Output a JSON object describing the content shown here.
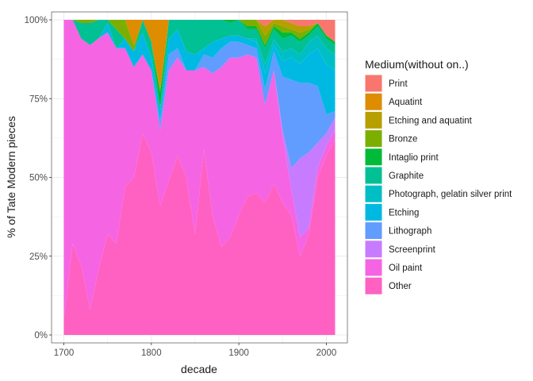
{
  "chart_data": {
    "type": "area",
    "stacked": "fill",
    "title": "",
    "xlabel": "decade",
    "ylabel": "% of Tate Modern pieces",
    "xlim": [
      1700,
      2010
    ],
    "ylim": [
      0,
      1
    ],
    "x_ticks": [
      {
        "value": 1700,
        "label": "1700"
      },
      {
        "value": 1800,
        "label": "1800"
      },
      {
        "value": 1900,
        "label": "1900"
      },
      {
        "value": 2000,
        "label": "2000"
      }
    ],
    "y_ticks": [
      {
        "value": 0,
        "label": "0%"
      },
      {
        "value": 0.25,
        "label": "25%"
      },
      {
        "value": 0.5,
        "label": "50%"
      },
      {
        "value": 0.75,
        "label": "75%"
      },
      {
        "value": 1.0,
        "label": "100%"
      }
    ],
    "legend_title": "Medium(without on..)",
    "legend_position": "right",
    "x": [
      1700,
      1710,
      1720,
      1730,
      1740,
      1750,
      1760,
      1770,
      1780,
      1790,
      1800,
      1810,
      1820,
      1830,
      1840,
      1850,
      1860,
      1870,
      1880,
      1890,
      1900,
      1910,
      1920,
      1930,
      1940,
      1950,
      1960,
      1970,
      1980,
      1990,
      2000,
      2010
    ],
    "series": [
      {
        "name": "Other",
        "color": "#FF61C3",
        "values": [
          0.05,
          0.29,
          0.22,
          0.08,
          0.22,
          0.32,
          0.29,
          0.47,
          0.5,
          0.64,
          0.58,
          0.41,
          0.49,
          0.57,
          0.5,
          0.32,
          0.59,
          0.38,
          0.28,
          0.31,
          0.38,
          0.44,
          0.45,
          0.42,
          0.48,
          0.42,
          0.38,
          0.25,
          0.32,
          0.5,
          0.57,
          0.62
        ]
      },
      {
        "name": "Oil paint",
        "color": "#F564E3",
        "values": [
          0.95,
          0.71,
          0.72,
          0.84,
          0.75,
          0.64,
          0.62,
          0.44,
          0.35,
          0.25,
          0.26,
          0.24,
          0.35,
          0.31,
          0.34,
          0.52,
          0.26,
          0.45,
          0.57,
          0.57,
          0.5,
          0.45,
          0.43,
          0.31,
          0.36,
          0.21,
          0.08,
          0.06,
          0.02,
          0.03,
          0.03,
          0.03
        ]
      },
      {
        "name": "Screenprint",
        "color": "#C77CFF",
        "values": [
          0,
          0,
          0,
          0,
          0,
          0,
          0,
          0,
          0,
          0,
          0,
          0,
          0,
          0,
          0,
          0,
          0,
          0,
          0,
          0,
          0,
          0,
          0,
          0,
          0,
          0.02,
          0.07,
          0.25,
          0.24,
          0.08,
          0.04,
          0.04
        ]
      },
      {
        "name": "Lithograph",
        "color": "#619CFF",
        "values": [
          0,
          0,
          0,
          0,
          0,
          0,
          0,
          0,
          0,
          0,
          0,
          0.03,
          0.05,
          0.03,
          0,
          0,
          0.04,
          0.05,
          0.06,
          0.05,
          0.05,
          0.03,
          0.03,
          0.05,
          0.06,
          0.17,
          0.28,
          0.24,
          0.22,
          0.18,
          0.06,
          0.02
        ]
      },
      {
        "name": "Etching",
        "color": "#00B9E3",
        "values": [
          0,
          0,
          0,
          0,
          0,
          0.03,
          0,
          0.03,
          0.05,
          0.07,
          0.04,
          0.03,
          0.05,
          0.06,
          0.06,
          0.05,
          0.02,
          0.05,
          0.03,
          0.02,
          0.02,
          0.02,
          0.02,
          0.05,
          0.02,
          0.05,
          0.07,
          0.06,
          0.09,
          0.12,
          0.16,
          0.13
        ]
      },
      {
        "name": "Photograph, gelatin silver print",
        "color": "#00BFC4",
        "values": [
          0,
          0,
          0,
          0,
          0,
          0,
          0,
          0,
          0,
          0,
          0,
          0,
          0,
          0,
          0,
          0,
          0,
          0,
          0,
          0,
          0,
          0,
          0.01,
          0.03,
          0.02,
          0.03,
          0.03,
          0.03,
          0.04,
          0.04,
          0.05,
          0.05
        ]
      },
      {
        "name": "Graphite",
        "color": "#00C094",
        "values": [
          0,
          0,
          0.05,
          0.07,
          0.06,
          0.01,
          0.06,
          0,
          0,
          0.04,
          0.05,
          0.01,
          0.06,
          0.03,
          0.1,
          0.11,
          0.09,
          0.07,
          0.06,
          0.04,
          0.05,
          0.03,
          0.03,
          0.05,
          0.03,
          0.04,
          0.04,
          0.04,
          0.02,
          0.03,
          0.03,
          0.03
        ]
      },
      {
        "name": "Intaglio print",
        "color": "#00BA38",
        "values": [
          0,
          0,
          0,
          0,
          0,
          0,
          0,
          0,
          0,
          0,
          0,
          0.05,
          0,
          0,
          0,
          0,
          0,
          0,
          0,
          0.01,
          0,
          0.01,
          0.01,
          0.01,
          0.01,
          0.02,
          0.01,
          0.01,
          0.01,
          0.01,
          0.01,
          0.01
        ]
      },
      {
        "name": "Bronze",
        "color": "#7CAE00",
        "values": [
          0,
          0,
          0.01,
          0.01,
          0,
          0,
          0.03,
          0.06,
          0.02,
          0,
          0,
          0.01,
          0,
          0,
          0,
          0,
          0,
          0,
          0,
          0,
          0,
          0.02,
          0.02,
          0.03,
          0.01,
          0.02,
          0.01,
          0.02,
          0.01,
          0,
          0,
          0
        ]
      },
      {
        "name": "Etching and aquatint",
        "color": "#B79F00",
        "values": [
          0,
          0,
          0,
          0,
          0,
          0,
          0,
          0,
          0,
          0,
          0,
          0,
          0,
          0,
          0,
          0,
          0,
          0,
          0,
          0,
          0,
          0,
          0,
          0.03,
          0.01,
          0.02,
          0.02,
          0.02,
          0.01,
          0,
          0,
          0
        ]
      },
      {
        "name": "Aquatint",
        "color": "#DE8C00",
        "values": [
          0,
          0,
          0,
          0,
          0,
          0,
          0,
          0,
          0.08,
          0,
          0.07,
          0.22,
          0,
          0,
          0,
          0,
          0,
          0,
          0,
          0,
          0,
          0,
          0,
          0,
          0,
          0,
          0,
          0,
          0,
          0,
          0,
          0
        ]
      },
      {
        "name": "Print",
        "color": "#F8766D",
        "values": [
          0,
          0,
          0,
          0,
          0,
          0,
          0,
          0,
          0,
          0,
          0,
          0,
          0,
          0,
          0,
          0,
          0,
          0,
          0,
          0,
          0,
          0,
          0,
          0.02,
          0,
          0,
          0.01,
          0.02,
          0.02,
          0.01,
          0.05,
          0.07
        ]
      }
    ]
  }
}
